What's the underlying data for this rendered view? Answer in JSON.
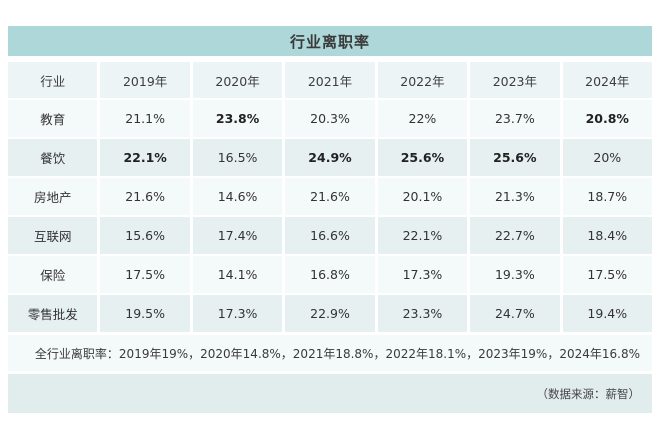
{
  "chart_data": {
    "type": "table",
    "title": "行业离职率",
    "columns": [
      "行业",
      "2019年",
      "2020年",
      "2021年",
      "2022年",
      "2023年",
      "2024年"
    ],
    "rows": [
      {
        "industry": "教育",
        "values": [
          "21.1%",
          "23.8%",
          "20.3%",
          "22%",
          "23.7%",
          "20.8%"
        ],
        "bold_columns": [
          "2020年",
          "2024年"
        ]
      },
      {
        "industry": "餐饮",
        "values": [
          "22.1%",
          "16.5%",
          "24.9%",
          "25.6%",
          "25.6%",
          "20%"
        ],
        "bold_columns": [
          "2019年",
          "2021年",
          "2022年",
          "2023年"
        ]
      },
      {
        "industry": "房地产",
        "values": [
          "21.6%",
          "14.6%",
          "21.6%",
          "20.1%",
          "21.3%",
          "18.7%"
        ],
        "bold_columns": []
      },
      {
        "industry": "互联网",
        "values": [
          "15.6%",
          "17.4%",
          "16.6%",
          "22.1%",
          "22.7%",
          "18.4%"
        ],
        "bold_columns": []
      },
      {
        "industry": "保险",
        "values": [
          "17.5%",
          "14.1%",
          "16.8%",
          "17.3%",
          "19.3%",
          "17.5%"
        ],
        "bold_columns": []
      },
      {
        "industry": "零售批发",
        "values": [
          "19.5%",
          "17.3%",
          "22.9%",
          "23.3%",
          "24.7%",
          "19.4%"
        ],
        "bold_columns": []
      }
    ],
    "summary": "全行业离职率：2019年19%，2020年14.8%，2021年18.8%，2022年18.1%，2023年19%，2024年16.8%",
    "source_note": "（数据来源：薪智）",
    "layout": {
      "grid": "off",
      "row_striping": "alternating"
    }
  },
  "colors": {
    "title_bar": "#aed7d9",
    "header_row": "#edf4f6",
    "row_light": "#f4f9fa",
    "row_teal": "#e6f0f0",
    "source_bar": "#e1eded",
    "text": "#333333"
  }
}
